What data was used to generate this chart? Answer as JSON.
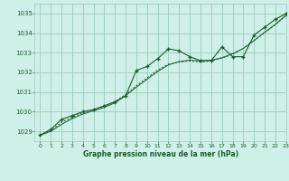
{
  "title": "Graphe pression niveau de la mer (hPa)",
  "xlim": [
    -0.5,
    23
  ],
  "ylim": [
    1028.5,
    1035.5
  ],
  "yticks": [
    1029,
    1030,
    1031,
    1032,
    1033,
    1034,
    1035
  ],
  "xticks": [
    0,
    1,
    2,
    3,
    4,
    5,
    6,
    7,
    8,
    9,
    10,
    11,
    12,
    13,
    14,
    15,
    16,
    17,
    18,
    19,
    20,
    21,
    22,
    23
  ],
  "bg_color": "#cff0e8",
  "grid_color": "#99ccbb",
  "line_color": "#1a5c2a",
  "hours": [
    0,
    1,
    2,
    3,
    4,
    5,
    6,
    7,
    8,
    9,
    10,
    11,
    12,
    13,
    14,
    15,
    16,
    17,
    18,
    19,
    20,
    21,
    22,
    23
  ],
  "pressure_main": [
    1028.8,
    1029.1,
    1029.6,
    1029.8,
    1030.0,
    1030.1,
    1030.3,
    1030.5,
    1030.8,
    1032.1,
    1032.3,
    1032.7,
    1033.2,
    1033.1,
    1032.8,
    1032.6,
    1032.6,
    1033.3,
    1032.8,
    1032.8,
    1033.9,
    1034.3,
    1034.7,
    1035.0
  ],
  "pressure_smooth": [
    1028.8,
    1029.0,
    1029.35,
    1029.65,
    1029.88,
    1030.05,
    1030.22,
    1030.45,
    1030.82,
    1031.25,
    1031.65,
    1032.05,
    1032.38,
    1032.55,
    1032.62,
    1032.58,
    1032.62,
    1032.75,
    1032.95,
    1033.22,
    1033.62,
    1034.05,
    1034.45,
    1034.92
  ],
  "pressure_dotted": [
    1028.8,
    1029.05,
    1029.45,
    1029.72,
    1029.95,
    1030.12,
    1030.28,
    1030.52,
    1030.88,
    1031.32,
    1031.72,
    1032.12,
    1032.42,
    1032.52,
    1032.58,
    1032.52,
    1032.58,
    1032.72,
    1032.92,
    1033.22,
    1033.62,
    1034.02,
    1034.42,
    1034.88
  ]
}
